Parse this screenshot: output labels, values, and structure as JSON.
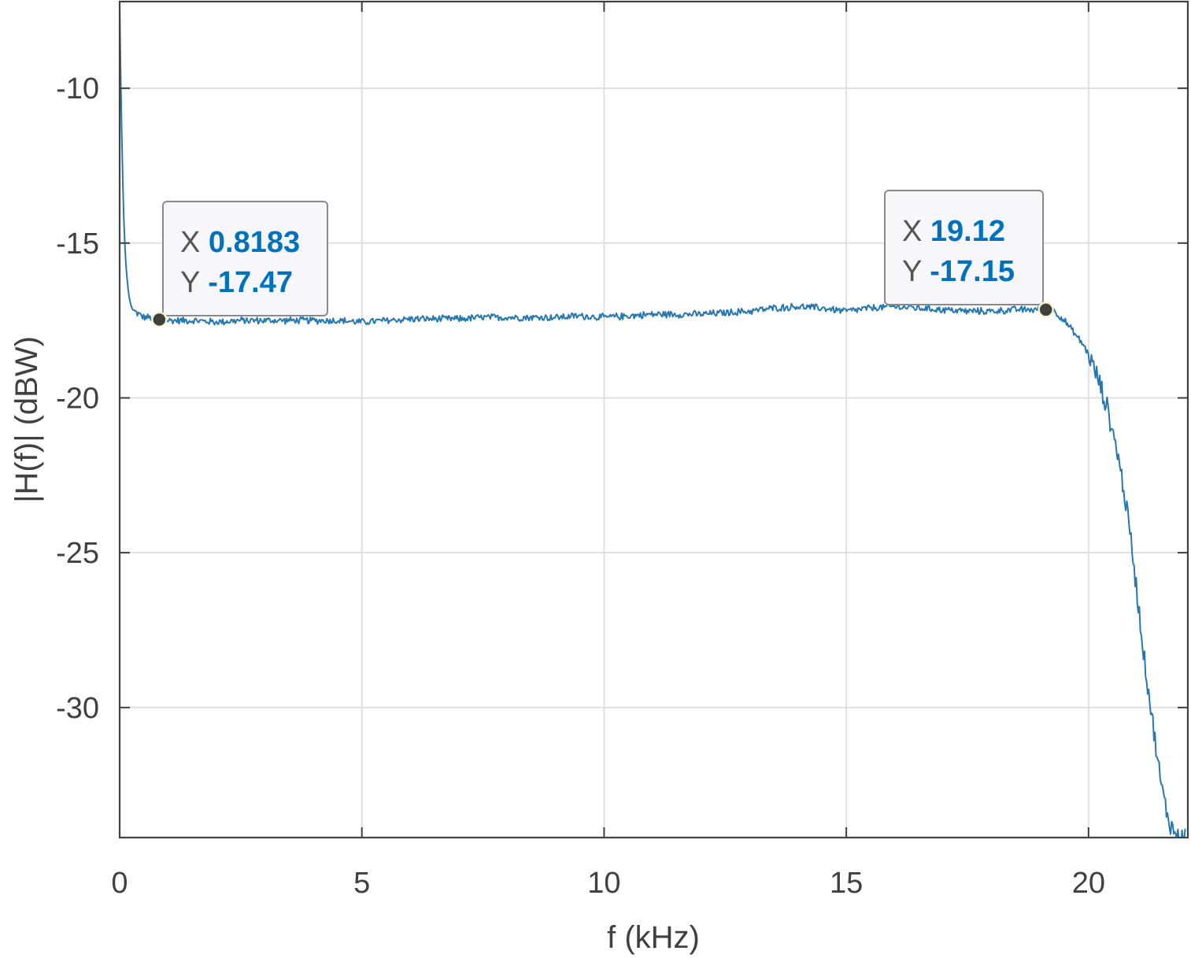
{
  "chart_data": {
    "type": "line",
    "title": "",
    "xlabel": "f (kHz)",
    "ylabel": "|H(f)| (dBW)",
    "xlim": [
      0,
      22.05
    ],
    "ylim": [
      -34.2,
      -7.2
    ],
    "xticks": [
      0,
      5,
      10,
      15,
      20
    ],
    "yticks": [
      -30,
      -25,
      -20,
      -15,
      -10
    ],
    "grid": true,
    "box": true,
    "colors": {
      "line": "#2878b0",
      "grid": "#e0e0e0",
      "axes": "#404040",
      "datatip_value": "#0072bd"
    },
    "series": [
      {
        "x": [
          0.0,
          0.02,
          0.05,
          0.08,
          0.12,
          0.16,
          0.2,
          0.25,
          0.3,
          0.4,
          0.5,
          0.6,
          0.7,
          0.8183,
          1.0,
          1.5,
          2.0,
          2.5,
          3.0,
          3.5,
          4.0,
          4.5,
          5.0,
          5.5,
          6.0,
          6.5,
          7.0,
          7.5,
          8.0,
          8.5,
          9.0,
          9.5,
          10.0,
          10.5,
          11.0,
          11.5,
          12.0,
          12.5,
          13.0,
          13.5,
          14.0,
          14.5,
          15.0,
          15.5,
          16.0,
          16.5,
          17.0,
          17.5,
          18.0,
          18.5,
          19.0,
          19.12,
          19.3,
          19.5,
          19.7,
          19.9,
          20.0,
          20.1,
          20.2,
          20.3,
          20.4,
          20.5,
          20.6,
          20.7,
          20.8,
          20.9,
          21.0,
          21.1,
          21.2,
          21.3,
          21.4,
          21.5,
          21.6,
          21.7,
          21.8,
          21.9,
          22.0
        ],
        "y": [
          -7.3,
          -9.5,
          -12.0,
          -14.0,
          -15.5,
          -16.3,
          -16.8,
          -17.1,
          -17.2,
          -17.3,
          -17.4,
          -17.4,
          -17.45,
          -17.47,
          -17.5,
          -17.5,
          -17.55,
          -17.5,
          -17.5,
          -17.5,
          -17.5,
          -17.5,
          -17.55,
          -17.5,
          -17.45,
          -17.45,
          -17.45,
          -17.4,
          -17.4,
          -17.4,
          -17.4,
          -17.35,
          -17.4,
          -17.35,
          -17.3,
          -17.3,
          -17.3,
          -17.25,
          -17.2,
          -17.1,
          -17.05,
          -17.1,
          -17.2,
          -17.1,
          -17.05,
          -17.1,
          -17.15,
          -17.2,
          -17.2,
          -17.15,
          -17.15,
          -17.15,
          -17.2,
          -17.5,
          -17.9,
          -18.3,
          -18.6,
          -19.0,
          -19.4,
          -19.9,
          -20.4,
          -21.1,
          -21.8,
          -22.7,
          -23.7,
          -24.9,
          -26.3,
          -27.7,
          -29.0,
          -30.2,
          -31.4,
          -32.5,
          -33.3,
          -33.8,
          -34.1,
          -34.2,
          -34.1
        ],
        "noise": 0.08
      }
    ],
    "datatips": [
      {
        "x_label": "X",
        "x_value": "0.8183",
        "y_label": "Y",
        "y_value": "-17.47",
        "x": 0.8183,
        "y": -17.47
      },
      {
        "x_label": "X",
        "x_value": "19.12",
        "y_label": "Y",
        "y_value": "-17.15",
        "x": 19.12,
        "y": -17.15
      }
    ]
  }
}
